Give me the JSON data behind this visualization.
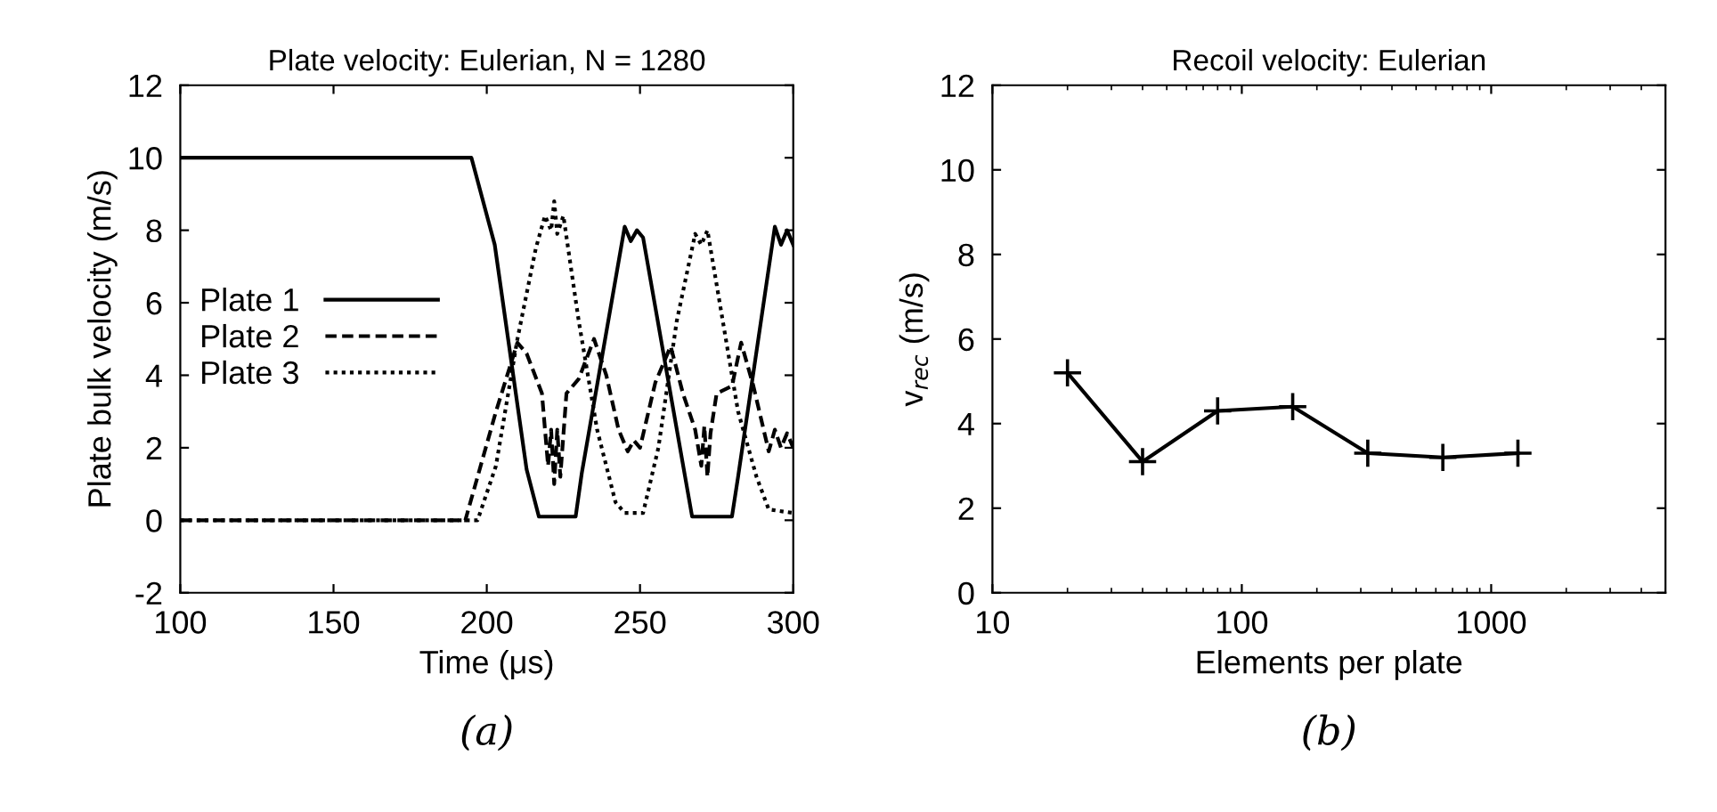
{
  "chart_data": [
    {
      "type": "line",
      "title": "Plate velocity: Eulerian, N = 1280",
      "xlabel": "Time (μs)",
      "ylabel": "Plate bulk velocity (m/s)",
      "annotations": [
        "(a)"
      ],
      "xlim": [
        100,
        300
      ],
      "xticks": [
        100,
        150,
        200,
        250,
        300
      ],
      "ylim": [
        -2,
        12
      ],
      "yticks": [
        -2,
        0,
        2,
        4,
        6,
        8,
        10,
        12
      ],
      "legend": "left",
      "grid": false,
      "marker": "none",
      "series": [
        {
          "name": "Plate 1",
          "color": "#000000",
          "line_style": "solid",
          "x": [
            100,
            195,
            202.6,
            213,
            217,
            229,
            231,
            245,
            247,
            249,
            251,
            267,
            280,
            282,
            294,
            296,
            298,
            300
          ],
          "values": [
            10,
            10,
            7.6,
            1.4,
            0.1,
            0.1,
            1.3,
            8.1,
            7.7,
            8.0,
            7.8,
            0.1,
            0.1,
            1.2,
            8.1,
            7.6,
            8.0,
            7.6
          ]
        },
        {
          "name": "Plate 2",
          "color": "#000000",
          "line_style": "dashed",
          "x": [
            100,
            193,
            203,
            210,
            213,
            218,
            220,
            221,
            222,
            223,
            224,
            226,
            230,
            235,
            239,
            243,
            246,
            248,
            250,
            255,
            260,
            264,
            268,
            270,
            271,
            272,
            273,
            275,
            280,
            283,
            287,
            292,
            294,
            296,
            298,
            300
          ],
          "values": [
            0,
            0,
            3,
            4.9,
            4.6,
            3.5,
            1.5,
            2.5,
            1.0,
            2.5,
            1.2,
            3.5,
            3.9,
            5.0,
            4.0,
            2.5,
            1.9,
            2.2,
            2.0,
            3.8,
            4.8,
            3.5,
            2.5,
            1.5,
            2.6,
            1.2,
            2.4,
            3.5,
            3.7,
            4.9,
            3.7,
            1.9,
            2.5,
            2.0,
            2.4,
            2.0
          ]
        },
        {
          "name": "Plate 3",
          "color": "#000000",
          "line_style": "dotted",
          "x": [
            100,
            197,
            203,
            210,
            216,
            219,
            221,
            222,
            223,
            225,
            230,
            236,
            242,
            245,
            251,
            256,
            262,
            268,
            270,
            272,
            276,
            282,
            288,
            292,
            300
          ],
          "values": [
            0,
            0,
            1.5,
            5.0,
            7.5,
            8.4,
            8.0,
            8.8,
            7.9,
            8.4,
            5.5,
            2.5,
            0.5,
            0.2,
            0.2,
            2,
            5.5,
            7.9,
            7.6,
            8.0,
            6,
            3,
            1.2,
            0.3,
            0.2
          ]
        }
      ]
    },
    {
      "type": "line",
      "title": "Recoil velocity: Eulerian",
      "xlabel": "Elements per plate",
      "ylabel": "v$_{rec}$ (m/s)",
      "annotations": [
        "(b)"
      ],
      "log": "x",
      "xlim": [
        10,
        5000
      ],
      "xticks": [
        10,
        100,
        1000
      ],
      "ylim": [
        0,
        12
      ],
      "yticks": [
        0,
        2,
        4,
        6,
        8,
        10,
        12
      ],
      "grid": false,
      "marker": "cross",
      "series": [
        {
          "color": "#000000",
          "line_style": "solid",
          "x": [
            20,
            40,
            80,
            160,
            320,
            640,
            1280
          ],
          "values": [
            5.2,
            3.1,
            4.3,
            4.4,
            3.3,
            3.2,
            3.3
          ]
        }
      ]
    }
  ]
}
